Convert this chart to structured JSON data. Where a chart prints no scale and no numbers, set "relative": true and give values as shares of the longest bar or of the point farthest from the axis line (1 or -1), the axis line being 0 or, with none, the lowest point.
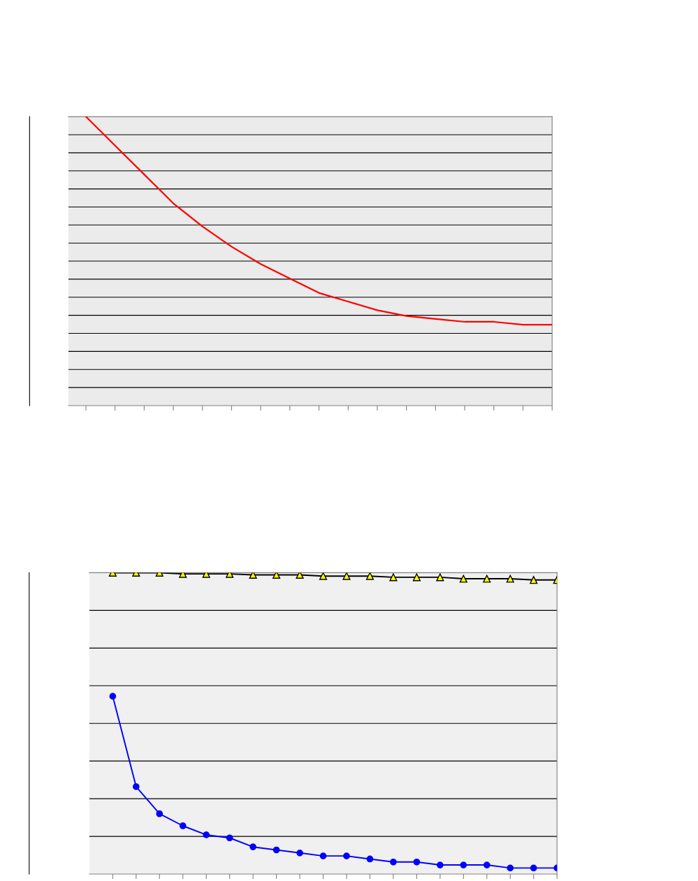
{
  "chart_data": [
    {
      "type": "line",
      "relative": true,
      "grid": "y",
      "marker": "none",
      "categories": [
        null,
        null,
        null,
        null,
        null,
        null,
        null,
        null,
        null,
        null,
        null,
        null,
        null,
        null,
        null,
        null,
        null
      ],
      "series": [
        {
          "color": "#ff0000",
          "values": [
            1.0,
            0.9,
            0.8,
            0.7,
            0.62,
            0.55,
            0.49,
            0.44,
            0.39,
            0.36,
            0.33,
            0.31,
            0.3,
            0.29,
            0.29,
            0.28,
            0.28
          ]
        }
      ]
    },
    {
      "type": "line",
      "relative": true,
      "grid": "y",
      "categories": [
        null,
        null,
        null,
        null,
        null,
        null,
        null,
        null,
        null,
        null,
        null,
        null,
        null,
        null,
        null,
        null,
        null,
        null,
        null,
        null
      ],
      "series": [
        {
          "color": "#ffff00",
          "marker": "triangle",
          "values": [
            1.0,
            1.0,
            1.0,
            0.996,
            0.996,
            0.996,
            0.993,
            0.993,
            0.993,
            0.989,
            0.989,
            0.989,
            0.985,
            0.985,
            0.985,
            0.98,
            0.98,
            0.98,
            0.976,
            0.976
          ]
        },
        {
          "color": "#0000ff",
          "marker": "circle",
          "values": [
            0.59,
            0.29,
            0.2,
            0.16,
            0.13,
            0.12,
            0.09,
            0.08,
            0.07,
            0.06,
            0.06,
            0.05,
            0.04,
            0.04,
            0.03,
            0.03,
            0.03,
            0.02,
            0.02,
            0.02
          ]
        }
      ]
    }
  ]
}
